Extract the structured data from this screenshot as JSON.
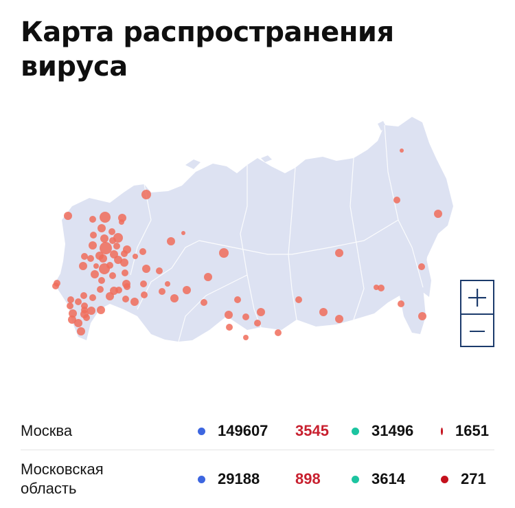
{
  "title": "Карта распространения вируса",
  "colors": {
    "land": "#dde2f2",
    "outbreak_dot": "#f06c5a",
    "confirmed": "#3d66e0",
    "deaths_text": "#c8202f",
    "recovered": "#1cc4a0",
    "deaths_dot": "#c4101c"
  },
  "map": {
    "zoom_in_icon": "plus-icon",
    "zoom_out_icon": "minus-icon"
  },
  "regions": [
    {
      "name": "Москва",
      "confirmed": "149607",
      "new_cases": "3545",
      "recovered": "31496",
      "deaths": "1651"
    },
    {
      "name": "Московская\nобласть",
      "confirmed": "29188",
      "new_cases": "898",
      "recovered": "3614",
      "deaths": "271"
    }
  ]
}
